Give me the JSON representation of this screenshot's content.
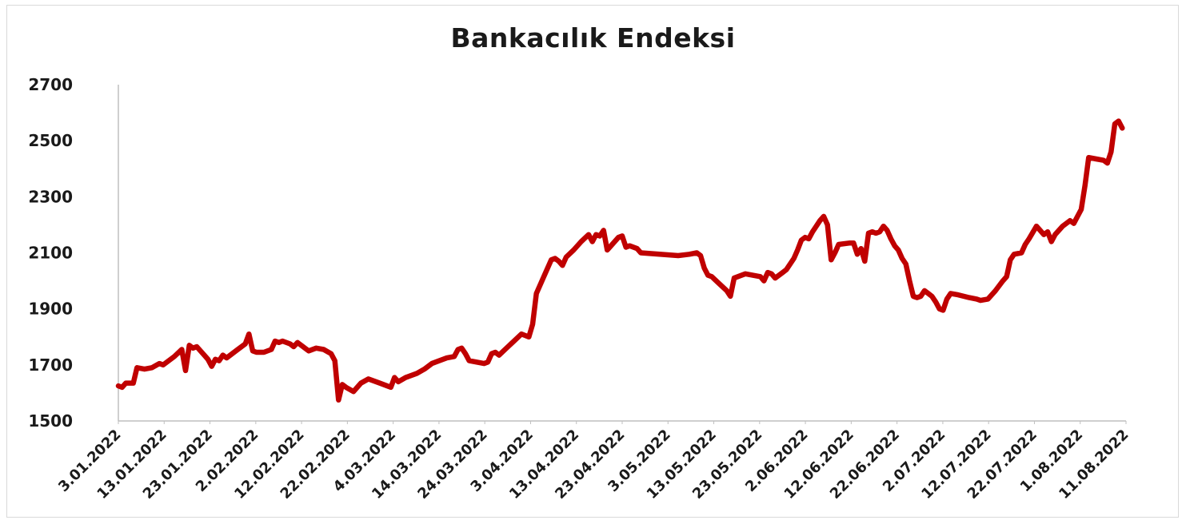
{
  "chart_data": {
    "type": "line",
    "title": "Bankacılık Endeksi",
    "xlabel": "",
    "ylabel": "",
    "ylim": [
      1500,
      2700
    ],
    "yticks": [
      "1500",
      "1700",
      "1900",
      "2100",
      "2300",
      "2500",
      "2700"
    ],
    "xtick_labels": [
      "3.01.2022",
      "13.01.2022",
      "23.01.2022",
      "2.02.2022",
      "12.02.2022",
      "22.02.2022",
      "4.03.2022",
      "14.03.2022",
      "24.03.2022",
      "3.04.2022",
      "13.04.2022",
      "23.04.2022",
      "3.05.2022",
      "13.05.2022",
      "23.05.2022",
      "2.06.2022",
      "12.06.2022",
      "22.06.2022",
      "2.07.2022",
      "12.07.2022",
      "22.07.2022",
      "1.08.2022",
      "11.08.2022"
    ],
    "grid": false,
    "legend": "none",
    "line_color": "#C00000",
    "series": [
      {
        "values": [
          [
            0,
            1625
          ],
          [
            1,
            1620
          ],
          [
            2,
            1635
          ],
          [
            4,
            1635
          ],
          [
            5,
            1690
          ],
          [
            7,
            1685
          ],
          [
            9,
            1690
          ],
          [
            11,
            1705
          ],
          [
            12,
            1700
          ],
          [
            15,
            1730
          ],
          [
            17,
            1755
          ],
          [
            18,
            1680
          ],
          [
            19,
            1770
          ],
          [
            20,
            1760
          ],
          [
            21,
            1765
          ],
          [
            24,
            1720
          ],
          [
            25,
            1695
          ],
          [
            26,
            1720
          ],
          [
            27,
            1715
          ],
          [
            28,
            1735
          ],
          [
            29,
            1725
          ],
          [
            32,
            1755
          ],
          [
            34,
            1775
          ],
          [
            35,
            1810
          ],
          [
            36,
            1750
          ],
          [
            37,
            1745
          ],
          [
            39,
            1745
          ],
          [
            41,
            1755
          ],
          [
            42,
            1785
          ],
          [
            43,
            1780
          ],
          [
            44,
            1785
          ],
          [
            46,
            1775
          ],
          [
            47,
            1765
          ],
          [
            48,
            1780
          ],
          [
            50,
            1760
          ],
          [
            51,
            1750
          ],
          [
            53,
            1760
          ],
          [
            55,
            1755
          ],
          [
            57,
            1740
          ],
          [
            58,
            1715
          ],
          [
            59,
            1575
          ],
          [
            60,
            1630
          ],
          [
            61,
            1620
          ],
          [
            63,
            1605
          ],
          [
            65,
            1635
          ],
          [
            67,
            1650
          ],
          [
            70,
            1635
          ],
          [
            72,
            1625
          ],
          [
            73,
            1620
          ],
          [
            74,
            1655
          ],
          [
            75,
            1640
          ],
          [
            77,
            1655
          ],
          [
            80,
            1670
          ],
          [
            82,
            1685
          ],
          [
            84,
            1705
          ],
          [
            86,
            1715
          ],
          [
            88,
            1725
          ],
          [
            90,
            1730
          ],
          [
            91,
            1755
          ],
          [
            92,
            1760
          ],
          [
            93,
            1740
          ],
          [
            94,
            1715
          ],
          [
            96,
            1710
          ],
          [
            98,
            1705
          ],
          [
            99,
            1710
          ],
          [
            100,
            1740
          ],
          [
            101,
            1745
          ],
          [
            102,
            1735
          ],
          [
            104,
            1760
          ],
          [
            106,
            1785
          ],
          [
            108,
            1810
          ],
          [
            109,
            1805
          ],
          [
            110,
            1800
          ],
          [
            111,
            1845
          ],
          [
            112,
            1955
          ],
          [
            114,
            2015
          ],
          [
            116,
            2075
          ],
          [
            117,
            2080
          ],
          [
            118,
            2070
          ],
          [
            119,
            2055
          ],
          [
            120,
            2085
          ],
          [
            122,
            2110
          ],
          [
            124,
            2140
          ],
          [
            126,
            2165
          ],
          [
            127,
            2140
          ],
          [
            128,
            2165
          ],
          [
            129,
            2160
          ],
          [
            130,
            2180
          ],
          [
            131,
            2110
          ],
          [
            132,
            2125
          ],
          [
            134,
            2155
          ],
          [
            135,
            2160
          ],
          [
            136,
            2120
          ],
          [
            137,
            2125
          ],
          [
            139,
            2115
          ],
          [
            140,
            2100
          ],
          [
            145,
            2095
          ],
          [
            150,
            2090
          ],
          [
            153,
            2095
          ],
          [
            155,
            2100
          ],
          [
            156,
            2090
          ],
          [
            157,
            2045
          ],
          [
            158,
            2020
          ],
          [
            159,
            2015
          ],
          [
            161,
            1990
          ],
          [
            163,
            1965
          ],
          [
            164,
            1945
          ],
          [
            165,
            2010
          ],
          [
            167,
            2020
          ],
          [
            168,
            2025
          ],
          [
            170,
            2020
          ],
          [
            172,
            2015
          ],
          [
            173,
            2000
          ],
          [
            174,
            2030
          ],
          [
            175,
            2025
          ],
          [
            176,
            2010
          ],
          [
            178,
            2030
          ],
          [
            179,
            2040
          ],
          [
            181,
            2080
          ],
          [
            182,
            2110
          ],
          [
            183,
            2145
          ],
          [
            184,
            2155
          ],
          [
            185,
            2150
          ],
          [
            186,
            2175
          ],
          [
            188,
            2215
          ],
          [
            189,
            2230
          ],
          [
            190,
            2200
          ],
          [
            191,
            2075
          ],
          [
            192,
            2100
          ],
          [
            193,
            2130
          ],
          [
            196,
            2135
          ],
          [
            197,
            2135
          ],
          [
            198,
            2095
          ],
          [
            199,
            2115
          ],
          [
            200,
            2070
          ],
          [
            201,
            2170
          ],
          [
            202,
            2175
          ],
          [
            203,
            2170
          ],
          [
            204,
            2175
          ],
          [
            205,
            2195
          ],
          [
            206,
            2180
          ],
          [
            207,
            2150
          ],
          [
            208,
            2125
          ],
          [
            209,
            2110
          ],
          [
            210,
            2080
          ],
          [
            211,
            2060
          ],
          [
            212,
            2000
          ],
          [
            213,
            1945
          ],
          [
            214,
            1940
          ],
          [
            215,
            1945
          ],
          [
            216,
            1965
          ],
          [
            217,
            1955
          ],
          [
            218,
            1945
          ],
          [
            219,
            1925
          ],
          [
            220,
            1900
          ],
          [
            221,
            1895
          ],
          [
            222,
            1935
          ],
          [
            223,
            1955
          ],
          [
            225,
            1950
          ],
          [
            228,
            1940
          ],
          [
            230,
            1935
          ],
          [
            231,
            1930
          ],
          [
            233,
            1935
          ],
          [
            235,
            1965
          ],
          [
            237,
            2000
          ],
          [
            238,
            2015
          ],
          [
            239,
            2075
          ],
          [
            240,
            2095
          ],
          [
            242,
            2100
          ],
          [
            243,
            2130
          ],
          [
            244,
            2150
          ],
          [
            246,
            2195
          ],
          [
            247,
            2180
          ],
          [
            248,
            2165
          ],
          [
            249,
            2175
          ],
          [
            250,
            2140
          ],
          [
            251,
            2165
          ],
          [
            253,
            2195
          ],
          [
            255,
            2215
          ],
          [
            256,
            2205
          ],
          [
            258,
            2255
          ],
          [
            259,
            2340
          ],
          [
            260,
            2440
          ],
          [
            262,
            2435
          ],
          [
            264,
            2430
          ],
          [
            265,
            2420
          ],
          [
            266,
            2460
          ],
          [
            267,
            2560
          ],
          [
            268,
            2570
          ],
          [
            269,
            2545
          ]
        ]
      }
    ]
  }
}
